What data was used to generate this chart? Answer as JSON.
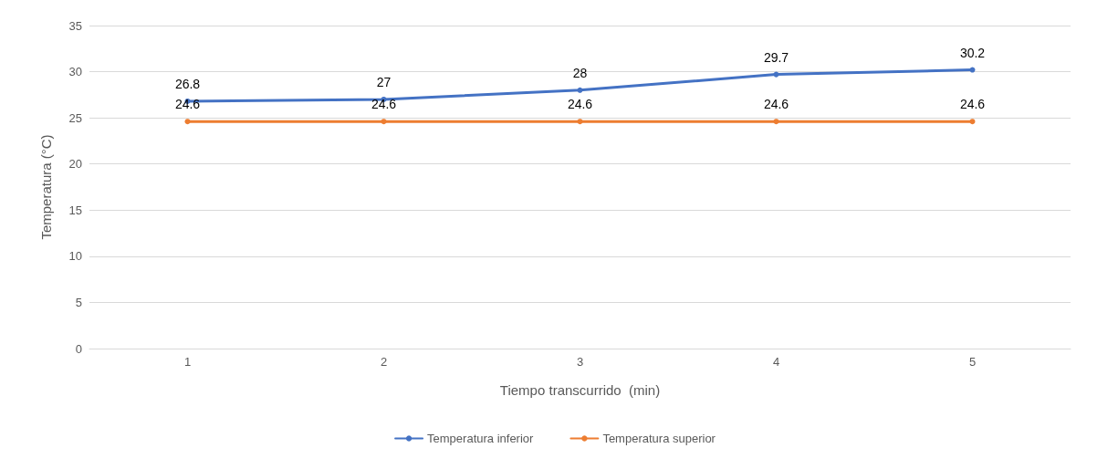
{
  "chart_data": {
    "type": "line",
    "xlabel": "Tiempo transcurrido  (min)",
    "ylabel": "Temperatura (°C)",
    "categories": [
      "1",
      "2",
      "3",
      "4",
      "5"
    ],
    "series": [
      {
        "name": "Temperatura inferior",
        "color": "#4472c4",
        "values": [
          26.8,
          27,
          28,
          29.7,
          30.2
        ]
      },
      {
        "name": "Temperatura superior",
        "color": "#ed7d31",
        "values": [
          24.6,
          24.6,
          24.6,
          24.6,
          24.6
        ]
      }
    ],
    "ylim": [
      0,
      35
    ],
    "yticks": [
      0,
      5,
      10,
      15,
      20,
      25,
      30,
      35
    ],
    "grid": "y",
    "legend": "bottom",
    "marker": "circle",
    "line_style": "solid",
    "data_labels": true
  }
}
